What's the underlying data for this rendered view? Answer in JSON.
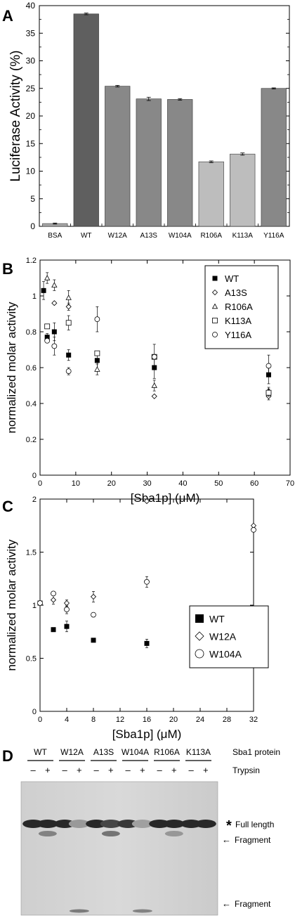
{
  "panels": {
    "A": "A",
    "B": "B",
    "C": "C",
    "D": "D"
  },
  "chart_data": [
    {
      "panel": "A",
      "type": "bar",
      "ylabel": "Luciferase Activity (%)",
      "xlabel": "",
      "ylim": [
        0,
        40
      ],
      "yticks": [
        "0",
        "5",
        "10",
        "15",
        "20",
        "25",
        "30",
        "35",
        "40"
      ],
      "categories": [
        "BSA",
        "WT",
        "W12A",
        "A13S",
        "W104A",
        "R106A",
        "K113A",
        "Y116A"
      ],
      "values": [
        0.5,
        38.5,
        25.4,
        23.1,
        23.0,
        11.7,
        13.1,
        25.0
      ],
      "errors": [
        0.1,
        0.15,
        0.15,
        0.3,
        0.15,
        0.15,
        0.2,
        0.1
      ],
      "bar_colors": [
        "#a9a9a9",
        "#5f5f5f",
        "#888888",
        "#888888",
        "#888888",
        "#bdbdbd",
        "#bdbdbd",
        "#888888"
      ]
    },
    {
      "panel": "B",
      "type": "scatter",
      "ylabel": "normalized molar activity",
      "xlabel": "[Sba1p] (μM)",
      "xlim": [
        0,
        70
      ],
      "ylim": [
        0,
        1.2
      ],
      "xticks": [
        "0",
        "10",
        "20",
        "30",
        "40",
        "50",
        "60",
        "70"
      ],
      "yticks": [
        "0",
        "0.2",
        "0.4",
        "0.6",
        "0.8",
        "1",
        "1.2"
      ],
      "legend_position": "top-right",
      "series": [
        {
          "name": "WT",
          "marker": "filled-square",
          "points": [
            [
              1,
              1.03,
              0.05
            ],
            [
              2,
              0.77,
              0.02
            ],
            [
              4,
              0.8,
              0.05
            ],
            [
              8,
              0.67,
              0.03
            ],
            [
              16,
              0.64,
              0.05
            ],
            [
              32,
              0.6,
              0.06
            ],
            [
              64,
              0.56,
              0.05
            ]
          ]
        },
        {
          "name": "A13S",
          "marker": "open-diamond",
          "points": [
            [
              4,
              0.96,
              0.0
            ],
            [
              8,
              0.94,
              0.02
            ],
            [
              32,
              0.44,
              0.0
            ],
            [
              64,
              0.44,
              0.02
            ]
          ]
        },
        {
          "name": "R106A",
          "marker": "open-triangle",
          "points": [
            [
              2,
              1.1,
              0.03
            ],
            [
              4,
              1.06,
              0.03
            ],
            [
              8,
              0.99,
              0.04
            ],
            [
              16,
              0.59,
              0.03
            ],
            [
              32,
              0.5,
              0.03
            ],
            [
              64,
              0.47,
              0.02
            ]
          ]
        },
        {
          "name": "K113A",
          "marker": "open-square",
          "points": [
            [
              2,
              0.83,
              0.0
            ],
            [
              8,
              0.85,
              0.04
            ],
            [
              16,
              0.68,
              0.0
            ],
            [
              32,
              0.66,
              0.0
            ],
            [
              64,
              0.46,
              0.02
            ]
          ]
        },
        {
          "name": "Y116A",
          "marker": "open-circle",
          "points": [
            [
              2,
              0.75,
              0.0
            ],
            [
              4,
              0.72,
              0.05
            ],
            [
              8,
              0.58,
              0.02
            ],
            [
              16,
              0.87,
              0.07
            ],
            [
              32,
              0.66,
              0.07
            ],
            [
              64,
              0.61,
              0.06
            ]
          ]
        }
      ]
    },
    {
      "panel": "C",
      "type": "scatter",
      "ylabel": "normalized molar activity",
      "xlabel": "[Sba1p] (μM)",
      "xlim": [
        0,
        32
      ],
      "ylim": [
        0,
        2
      ],
      "xticks": [
        "0",
        "4",
        "8",
        "12",
        "16",
        "20",
        "24",
        "28",
        "32"
      ],
      "yticks": [
        "0",
        "0.5",
        "1",
        "1.5",
        "2"
      ],
      "legend_position": "center-right",
      "series": [
        {
          "name": "WT",
          "marker": "filled-square",
          "points": [
            [
              0,
              1.02,
              0.0
            ],
            [
              2,
              0.77,
              0.0
            ],
            [
              4,
              0.8,
              0.05
            ],
            [
              8,
              0.67,
              0.0
            ],
            [
              16,
              0.64,
              0.04
            ],
            [
              32,
              0.6,
              0.06
            ]
          ]
        },
        {
          "name": "W12A",
          "marker": "open-diamond",
          "points": [
            [
              2,
              1.05,
              0.04
            ],
            [
              4,
              1.02,
              0.03
            ],
            [
              8,
              1.08,
              0.05
            ],
            [
              16,
              1.98,
              0.0
            ],
            [
              32,
              1.75,
              0.0
            ]
          ]
        },
        {
          "name": "W104A",
          "marker": "open-circle",
          "points": [
            [
              0,
              1.02,
              0.0
            ],
            [
              2,
              1.11,
              0.0
            ],
            [
              4,
              0.96,
              0.04
            ],
            [
              8,
              0.91,
              0.0
            ],
            [
              16,
              1.22,
              0.05
            ],
            [
              32,
              1.71,
              0.0
            ]
          ]
        }
      ]
    }
  ],
  "gel": {
    "lane_groups": [
      "WT",
      "W12A",
      "A13S",
      "W104A",
      "R106A",
      "K113A"
    ],
    "row1_label": "Sba1 protein",
    "row2_label": "Trypsin",
    "minus": "–",
    "plus": "+",
    "star": "*",
    "full_length": "Full length",
    "fragment_upper": "Fragment",
    "fragment_lower": "Fragment",
    "arrow": "←"
  }
}
